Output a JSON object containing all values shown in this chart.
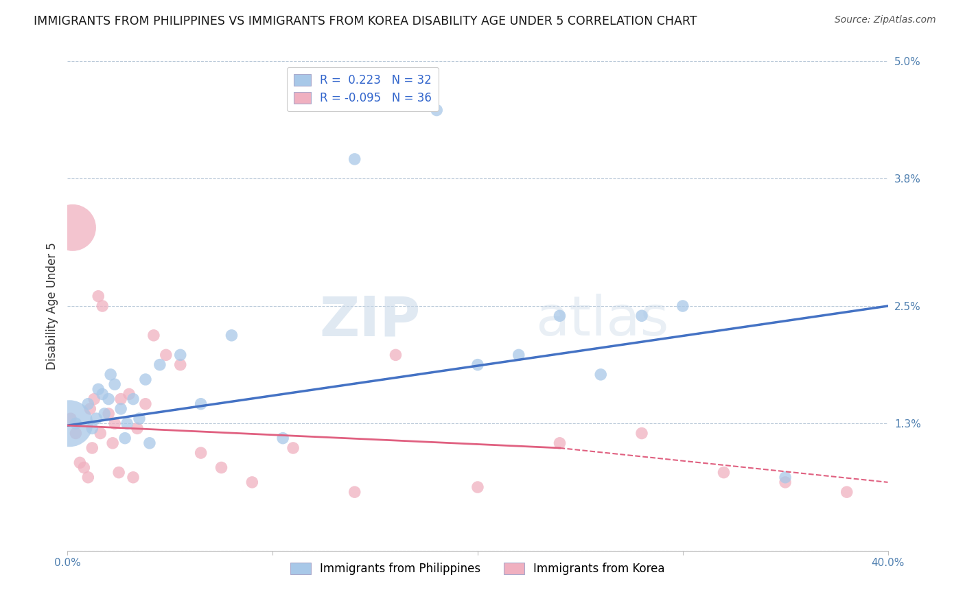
{
  "title": "IMMIGRANTS FROM PHILIPPINES VS IMMIGRANTS FROM KOREA DISABILITY AGE UNDER 5 CORRELATION CHART",
  "source": "Source: ZipAtlas.com",
  "ylabel": "Disability Age Under 5",
  "xlim": [
    0.0,
    40.0
  ],
  "ylim": [
    0.0,
    5.0
  ],
  "yticks": [
    0.0,
    1.3,
    2.5,
    3.8,
    5.0
  ],
  "xticks": [
    0.0,
    10.0,
    20.0,
    30.0,
    40.0
  ],
  "ytick_labels": [
    "",
    "1.3%",
    "2.5%",
    "3.8%",
    "5.0%"
  ],
  "legend_blue_r": "R =  0.223",
  "legend_blue_n": "N = 32",
  "legend_pink_r": "R = -0.095",
  "legend_pink_n": "N = 36",
  "blue_color": "#a8c8e8",
  "pink_color": "#f0b0c0",
  "blue_line_color": "#4472c4",
  "pink_line_color": "#e06080",
  "watermark_zip": "ZIP",
  "watermark_atlas": "atlas",
  "philippines_x": [
    0.4,
    1.0,
    1.4,
    1.7,
    2.0,
    2.3,
    2.6,
    2.9,
    3.2,
    3.8,
    4.5,
    5.5,
    6.5,
    8.0,
    10.5,
    14.0,
    18.0,
    20.0,
    22.0,
    24.0,
    26.0,
    28.0,
    30.0,
    35.0,
    1.2,
    1.5,
    1.8,
    2.1,
    2.8,
    3.5,
    4.0,
    0.1
  ],
  "philippines_y": [
    1.3,
    1.5,
    1.35,
    1.6,
    1.55,
    1.7,
    1.45,
    1.3,
    1.55,
    1.75,
    1.9,
    2.0,
    1.5,
    2.2,
    1.15,
    4.0,
    4.5,
    1.9,
    2.0,
    2.4,
    1.8,
    2.4,
    2.5,
    0.75,
    1.25,
    1.65,
    1.4,
    1.8,
    1.15,
    1.35,
    1.1,
    1.3
  ],
  "philippines_size": [
    40,
    40,
    40,
    40,
    40,
    40,
    40,
    40,
    40,
    40,
    40,
    40,
    40,
    40,
    40,
    40,
    40,
    40,
    40,
    40,
    40,
    40,
    40,
    40,
    40,
    40,
    40,
    40,
    40,
    40,
    40,
    600
  ],
  "korea_x": [
    0.15,
    0.4,
    0.6,
    0.8,
    1.0,
    1.2,
    1.5,
    1.7,
    2.0,
    2.3,
    2.6,
    3.0,
    3.4,
    3.8,
    4.2,
    4.8,
    5.5,
    6.5,
    7.5,
    9.0,
    11.0,
    14.0,
    16.0,
    20.0,
    24.0,
    28.0,
    32.0,
    35.0,
    38.0,
    1.1,
    1.3,
    1.6,
    2.2,
    2.5,
    3.2,
    0.25
  ],
  "korea_y": [
    1.35,
    1.2,
    0.9,
    0.85,
    0.75,
    1.05,
    2.6,
    2.5,
    1.4,
    1.3,
    1.55,
    1.6,
    1.25,
    1.5,
    2.2,
    2.0,
    1.9,
    1.0,
    0.85,
    0.7,
    1.05,
    0.6,
    2.0,
    0.65,
    1.1,
    1.2,
    0.8,
    0.7,
    0.6,
    1.45,
    1.55,
    1.2,
    1.1,
    0.8,
    0.75,
    3.3
  ],
  "korea_size": [
    40,
    40,
    40,
    40,
    40,
    40,
    40,
    40,
    40,
    40,
    40,
    40,
    40,
    40,
    40,
    40,
    40,
    40,
    40,
    40,
    40,
    40,
    40,
    40,
    40,
    40,
    40,
    40,
    40,
    40,
    40,
    40,
    40,
    40,
    40,
    600
  ],
  "blue_line_x0": 0.0,
  "blue_line_y0": 1.28,
  "blue_line_x1": 40.0,
  "blue_line_y1": 2.5,
  "pink_solid_x0": 0.0,
  "pink_solid_y0": 1.28,
  "pink_solid_x1": 24.0,
  "pink_solid_y1": 1.05,
  "pink_dash_x0": 24.0,
  "pink_dash_y0": 1.05,
  "pink_dash_x1": 40.0,
  "pink_dash_y1": 0.7
}
